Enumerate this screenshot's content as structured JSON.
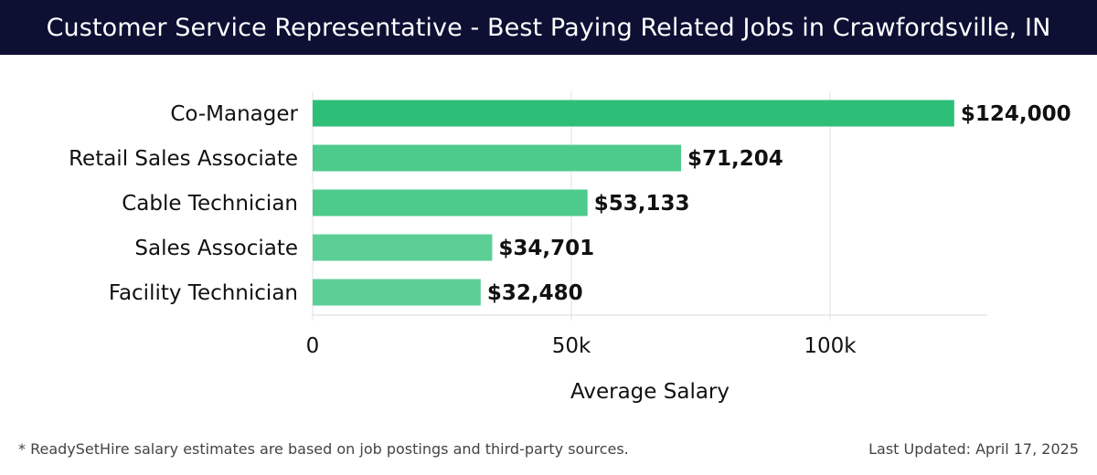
{
  "header": {
    "title": "Customer Service Representative - Best Paying Related Jobs in Crawfordsville, IN"
  },
  "chart_data": {
    "type": "bar",
    "orientation": "horizontal",
    "categories": [
      "Co-Manager",
      "Retail Sales Associate",
      "Cable Technician",
      "Sales Associate",
      "Facility Technician"
    ],
    "values": [
      124000,
      71204,
      53133,
      34701,
      32480
    ],
    "value_labels": [
      "$124,000",
      "$71,204",
      "$53,133",
      "$34,701",
      "$32,480"
    ],
    "xlabel": "Average Salary",
    "ylabel": "",
    "xlim": [
      0,
      130000
    ],
    "xticks": [
      0,
      50000,
      100000
    ],
    "xtick_labels": [
      "0",
      "50k",
      "100k"
    ],
    "grid": "vertical",
    "colors": {
      "top_bar": "#2dbf77",
      "bar": "#4dcb8d",
      "bar_light": "#5ccf97",
      "header_bg": "#0d0f33"
    }
  },
  "footer": {
    "note": "* ReadySetHire salary estimates are based on job postings and third-party sources.",
    "updated": "Last Updated: April 17, 2025"
  }
}
